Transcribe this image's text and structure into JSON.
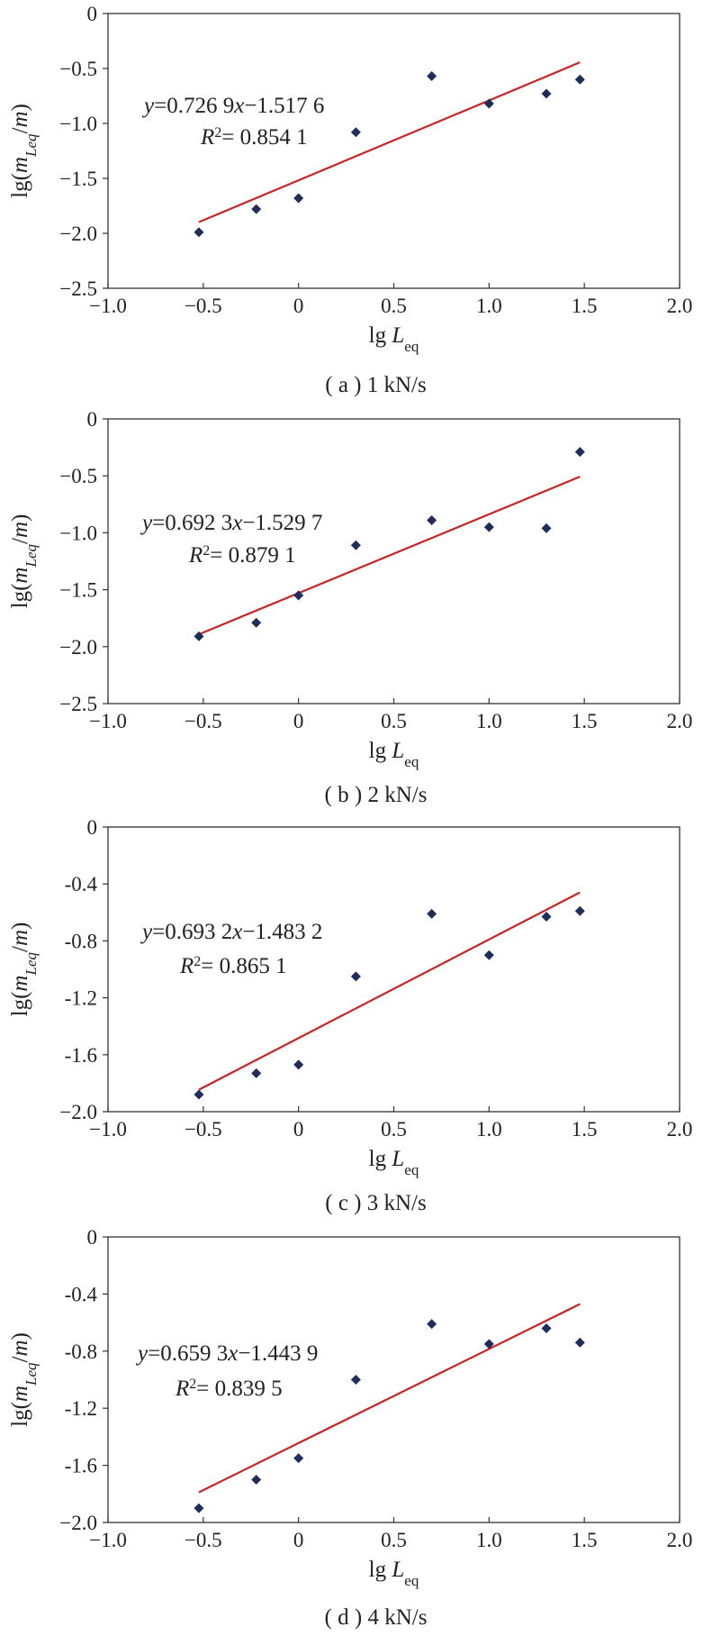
{
  "chart_data": [
    {
      "type": "scatter",
      "caption": "( a ) 1 kN/s",
      "xlabel": "lg L_eq",
      "ylabel": "lg(m_Leq/m)",
      "xlim": [
        -1.0,
        2.0
      ],
      "ylim": [
        -2.5,
        0
      ],
      "xticks": [
        "−1.0",
        "−0.5",
        "0",
        "0.5",
        "1.0",
        "1.5",
        "2.0"
      ],
      "yticks": [
        "0",
        "−0.5",
        "−1.0",
        "−1.5",
        "−2.0",
        "−2.5"
      ],
      "grid": false,
      "legend": "none",
      "marker_color": "#1f2d5c",
      "fit_color": "#cc2222",
      "points": {
        "x": [
          -0.523,
          -0.222,
          0.0,
          0.301,
          0.699,
          1.0,
          1.301,
          1.477
        ],
        "y": [
          -1.99,
          -1.78,
          -1.68,
          -1.08,
          -0.57,
          -0.82,
          -0.73,
          -0.6
        ]
      },
      "fit": {
        "slope": 0.7269,
        "intercept": -1.5176
      },
      "equation": "y=0.726 9x−1.517 6",
      "r2": "R²= 0.854 1"
    },
    {
      "type": "scatter",
      "caption": "( b ) 2 kN/s",
      "xlabel": "lg L_eq",
      "ylabel": "lg(m_Leq/m)",
      "xlim": [
        -1.0,
        2.0
      ],
      "ylim": [
        -2.5,
        0
      ],
      "xticks": [
        "−1.0",
        "−0.5",
        "0",
        "0.5",
        "1.0",
        "1.5",
        "2.0"
      ],
      "yticks": [
        "0",
        "−0.5",
        "−1.0",
        "−1.5",
        "−2.0",
        "−2.5"
      ],
      "grid": false,
      "legend": "none",
      "marker_color": "#1f2d5c",
      "fit_color": "#cc2222",
      "points": {
        "x": [
          -0.523,
          -0.222,
          0.0,
          0.301,
          0.699,
          1.0,
          1.301,
          1.477
        ],
        "y": [
          -1.91,
          -1.79,
          -1.55,
          -1.11,
          -0.89,
          -0.95,
          -0.96,
          -0.29
        ]
      },
      "fit": {
        "slope": 0.6923,
        "intercept": -1.5297
      },
      "equation": "y=0.692 3x−1.529 7",
      "r2": "R²= 0.879 1"
    },
    {
      "type": "scatter",
      "caption": "( c ) 3 kN/s",
      "xlabel": "lg L_eq",
      "ylabel": "lg(m_Leq/m)",
      "xlim": [
        -1.0,
        2.0
      ],
      "ylim": [
        -2.0,
        0
      ],
      "xticks": [
        "−1.0",
        "−0.5",
        "0",
        "0.5",
        "1.0",
        "1.5",
        "2.0"
      ],
      "yticks": [
        "0",
        "-0.4",
        "-0.8",
        "-1.2",
        "-1.6",
        "−2.0"
      ],
      "grid": false,
      "legend": "none",
      "marker_color": "#1f2d5c",
      "fit_color": "#cc2222",
      "points": {
        "x": [
          -0.523,
          -0.222,
          0.0,
          0.301,
          0.699,
          1.0,
          1.301,
          1.477
        ],
        "y": [
          -1.88,
          -1.73,
          -1.67,
          -1.05,
          -0.61,
          -0.9,
          -0.63,
          -0.59
        ]
      },
      "fit": {
        "slope": 0.6932,
        "intercept": -1.4832
      },
      "equation": "y=0.693 2x−1.483 2",
      "r2": "R²= 0.865 1"
    },
    {
      "type": "scatter",
      "caption": "( d ) 4 kN/s",
      "xlabel": "lg L_eq",
      "ylabel": "lg(m_Leq/m)",
      "xlim": [
        -1.0,
        2.0
      ],
      "ylim": [
        -2.0,
        0
      ],
      "xticks": [
        "−1.0",
        "−0.5",
        "0",
        "0.5",
        "1.0",
        "1.5",
        "2.0"
      ],
      "yticks": [
        "0",
        "-0.4",
        "-0.8",
        "-1.2",
        "-1.6",
        "−2.0"
      ],
      "grid": false,
      "legend": "none",
      "marker_color": "#1f2d5c",
      "fit_color": "#cc2222",
      "points": {
        "x": [
          -0.523,
          -0.222,
          0.0,
          0.301,
          0.699,
          1.0,
          1.301,
          1.477
        ],
        "y": [
          -1.9,
          -1.7,
          -1.55,
          -1.0,
          -0.61,
          -0.75,
          -0.64,
          -0.74
        ]
      },
      "fit": {
        "slope": 0.6593,
        "intercept": -1.4439
      },
      "equation": "y=0.659 3x−1.443 9",
      "r2": "R²= 0.839 5"
    }
  ]
}
